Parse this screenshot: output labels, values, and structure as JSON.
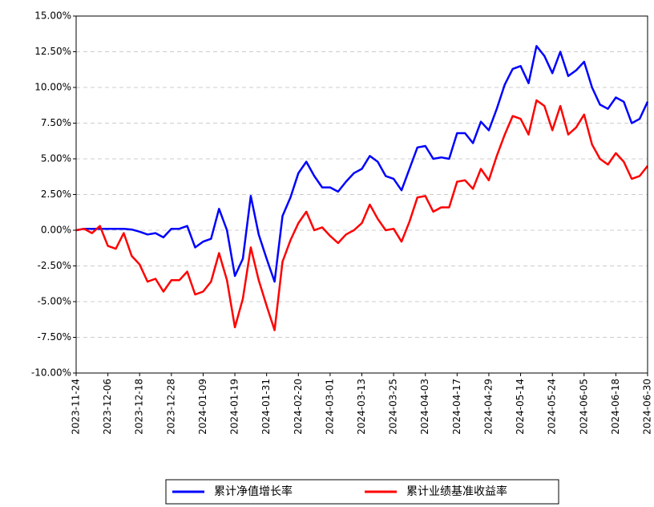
{
  "chart_data": {
    "type": "line",
    "categories": [
      "2023-11-24",
      null,
      null,
      null,
      "2023-12-06",
      null,
      null,
      null,
      "2023-12-18",
      null,
      null,
      null,
      "2023-12-28",
      null,
      null,
      null,
      "2024-01-09",
      null,
      null,
      null,
      "2024-01-19",
      null,
      null,
      null,
      "2024-01-31",
      null,
      null,
      null,
      "2024-02-20",
      null,
      null,
      null,
      "2024-03-01",
      null,
      null,
      null,
      "2024-03-13",
      null,
      null,
      null,
      "2024-03-25",
      null,
      null,
      null,
      "2024-04-03",
      null,
      null,
      null,
      "2024-04-17",
      null,
      null,
      null,
      "2024-04-29",
      null,
      null,
      null,
      "2024-05-14",
      null,
      null,
      null,
      "2024-05-24",
      null,
      null,
      null,
      "2024-06-05",
      null,
      null,
      null,
      "2024-06-18",
      null,
      null,
      null,
      "2024-06-30"
    ],
    "series": [
      {
        "name": "累计净值增长率",
        "color": "#0000ff",
        "values": [
          0,
          0.1,
          0.1,
          0.1,
          0.1,
          0.1,
          0.1,
          0.05,
          -0.1,
          -0.3,
          -0.2,
          -0.5,
          0.1,
          0.1,
          0.3,
          -1.2,
          -0.8,
          -0.6,
          1.5,
          0.0,
          -3.2,
          -2.0,
          2.4,
          -0.3,
          -2.0,
          -3.6,
          1.0,
          2.3,
          4.0,
          4.8,
          3.8,
          3.0,
          3.0,
          2.7,
          3.4,
          4.0,
          4.3,
          5.2,
          4.8,
          3.8,
          3.6,
          2.8,
          4.3,
          5.8,
          5.9,
          5.0,
          5.1,
          5.0,
          6.8,
          6.8,
          6.1,
          7.6,
          7.0,
          8.5,
          10.2,
          11.3,
          11.5,
          10.3,
          12.9,
          12.2,
          11.0,
          12.5,
          10.8,
          11.2,
          11.8,
          10.0,
          8.8,
          8.5,
          9.3,
          9.0,
          7.5,
          7.8,
          9.0
        ]
      },
      {
        "name": "累计业绩基准收益率",
        "color": "#ff0000",
        "values": [
          0,
          0.1,
          -0.2,
          0.3,
          -1.1,
          -1.3,
          -0.2,
          -1.8,
          -2.4,
          -3.6,
          -3.4,
          -4.3,
          -3.5,
          -3.5,
          -2.9,
          -4.5,
          -4.3,
          -3.6,
          -1.6,
          -3.5,
          -6.8,
          -4.8,
          -1.2,
          -3.5,
          -5.3,
          -7.0,
          -2.2,
          -0.7,
          0.5,
          1.3,
          0.0,
          0.2,
          -0.4,
          -0.9,
          -0.3,
          0.0,
          0.5,
          1.8,
          0.8,
          0.0,
          0.1,
          -0.8,
          0.6,
          2.3,
          2.4,
          1.3,
          1.6,
          1.6,
          3.4,
          3.5,
          2.9,
          4.3,
          3.5,
          5.2,
          6.7,
          8.0,
          7.8,
          6.7,
          9.1,
          8.7,
          7.0,
          8.7,
          6.7,
          7.2,
          8.1,
          6.0,
          5.0,
          4.6,
          5.4,
          4.8,
          3.6,
          3.8,
          4.5
        ]
      }
    ],
    "ylim": [
      -10,
      15
    ],
    "yticks": [
      {
        "value": -10,
        "label": "-10.00%"
      },
      {
        "value": -7.5,
        "label": "-7.50%"
      },
      {
        "value": -5,
        "label": "-5.00%"
      },
      {
        "value": -2.5,
        "label": "-2.50%"
      },
      {
        "value": 0,
        "label": "0.00%"
      },
      {
        "value": 2.5,
        "label": "2.50%"
      },
      {
        "value": 5,
        "label": "5.00%"
      },
      {
        "value": 7.5,
        "label": "7.50%"
      },
      {
        "value": 10,
        "label": "10.00%"
      },
      {
        "value": 12.5,
        "label": "12.50%"
      },
      {
        "value": 15,
        "label": "15.00%"
      }
    ],
    "grid": true,
    "legend": "bottom"
  }
}
